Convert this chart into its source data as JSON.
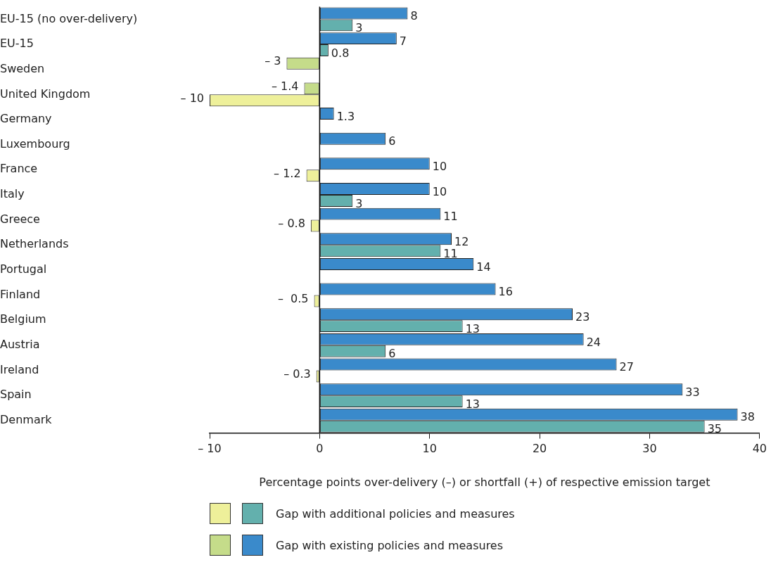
{
  "chart_data": {
    "type": "bar",
    "orientation": "horizontal",
    "xlabel": "Percentage points over-delivery (–) or shortfall (+) of respective emission target",
    "categories": [
      "EU-15 (no over-delivery)",
      "EU-15",
      "Sweden",
      "United Kingdom",
      "Germany",
      "Luxembourg",
      "France",
      "Italy",
      "Greece",
      "Netherlands",
      "Portugal",
      "Finland",
      "Belgium",
      "Austria",
      "Ireland",
      "Spain",
      "Denmark"
    ],
    "series": [
      {
        "name": "Gap with existing policies and measures",
        "values": [
          8,
          7,
          -3,
          -1.4,
          1.3,
          6,
          10,
          10,
          11,
          12,
          14,
          16,
          23,
          24,
          27,
          33,
          38
        ],
        "colors": [
          "#3a8acb",
          "#3a8acb",
          "#c5dc8a",
          "#c5dc8a",
          "#3a8acb",
          "#3a8acb",
          "#3a8acb",
          "#3a8acb",
          "#3a8acb",
          "#3a8acb",
          "#3a8acb",
          "#3a8acb",
          "#3a8acb",
          "#3a8acb",
          "#3a8acb",
          "#3a8acb",
          "#3a8acb"
        ],
        "value_labels": [
          "8",
          "7",
          "– 3",
          "– 1.4",
          "1.3",
          "6",
          "10",
          "10",
          "11",
          "12",
          "14",
          "16",
          "23",
          "24",
          "27",
          "33",
          "38"
        ]
      },
      {
        "name": "Gap with additional policies and measures",
        "values": [
          3,
          0.8,
          null,
          -10,
          null,
          null,
          -1.2,
          3,
          -0.8,
          11,
          null,
          -0.5,
          13,
          6,
          -0.3,
          13,
          35
        ],
        "colors": [
          "#63b0ad",
          "#63b0ad",
          "#63b0ad",
          "#eef09a",
          "#63b0ad",
          "#63b0ad",
          "#eef09a",
          "#63b0ad",
          "#eef09a",
          "#63b0ad",
          "#63b0ad",
          "#eef09a",
          "#63b0ad",
          "#63b0ad",
          "#eef09a",
          "#63b0ad",
          "#63b0ad"
        ],
        "value_labels": [
          "3",
          "0.8",
          null,
          "– 10",
          null,
          null,
          "– 1.2",
          "3",
          "– 0.8",
          "11",
          null,
          "–  0.5",
          "13",
          "6",
          "– 0.3",
          "13",
          "35"
        ]
      }
    ],
    "xlim": [
      -10,
      40
    ],
    "xticks": [
      {
        "value": -10,
        "label": "– 10"
      },
      0,
      10,
      20,
      30,
      40
    ],
    "legend": "bottom"
  }
}
